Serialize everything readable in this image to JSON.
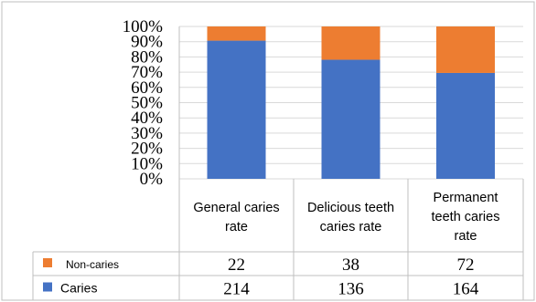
{
  "chart_data": {
    "type": "bar",
    "stacked": true,
    "normalized": true,
    "categories": [
      [
        "General caries",
        "rate"
      ],
      [
        "Delicious teeth",
        "caries rate"
      ],
      [
        "Permanent",
        "teeth caries",
        "rate"
      ]
    ],
    "series": [
      {
        "name": "Caries",
        "values": [
          214,
          136,
          164
        ],
        "color": "#4472c4"
      },
      {
        "name": "Non-caries",
        "values": [
          22,
          38,
          72
        ],
        "color": "#ed7d31"
      }
    ],
    "yticks": [
      "0%",
      "10%",
      "20%",
      "30%",
      "40%",
      "50%",
      "60%",
      "70%",
      "80%",
      "90%",
      "100%"
    ],
    "ylim": [
      0,
      100
    ],
    "grid": true,
    "legend": "data table"
  }
}
